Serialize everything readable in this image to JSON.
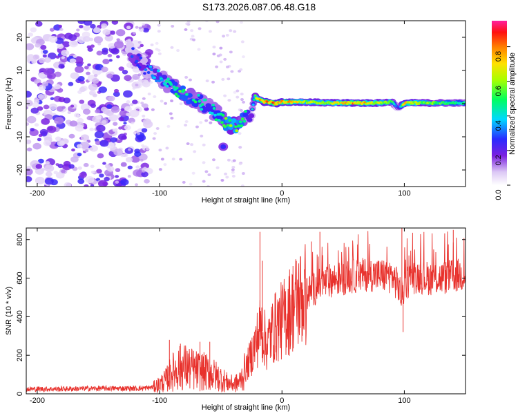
{
  "title": "S173.2026.087.06.48.G18",
  "chart_data": [
    {
      "type": "heatmap",
      "xlabel": "Height of straight line (km)",
      "ylabel": "Frequency (Hz)",
      "xlim": [
        -209,
        150
      ],
      "ylim": [
        -25,
        25
      ],
      "xticks": [
        -200,
        -100,
        0,
        100
      ],
      "yticks": [
        20,
        10,
        0,
        -10,
        -20
      ],
      "colorbar": {
        "label": "Normalized spectral amplitude",
        "range": [
          0,
          0.95
        ],
        "ticks": [
          "0.0",
          "0.2",
          "0.4",
          "0.6",
          "0.8"
        ],
        "tick_values": [
          0.0,
          0.2,
          0.4,
          0.6,
          0.8
        ],
        "colormap": "rainbow (white-violet-blue-cyan-green-yellow-red-magenta)"
      },
      "ridge": {
        "x": [
          -125,
          -110,
          -100,
          -90,
          -80,
          -70,
          -60,
          -50,
          -45,
          -40,
          -35,
          -30,
          -25,
          -22,
          -20,
          -15,
          -10,
          -5,
          0,
          10,
          20,
          40,
          60,
          80,
          90,
          95,
          100,
          120,
          150
        ],
        "freq": [
          16,
          10,
          8,
          5,
          3,
          1,
          -1,
          -4,
          -6,
          -7,
          -6,
          -4,
          -3,
          2.5,
          1.5,
          0.5,
          0.5,
          0,
          0.5,
          0.5,
          0.5,
          0.2,
          0.2,
          0.2,
          0.5,
          -1.5,
          0.2,
          0.2,
          0.2
        ],
        "amplitude": [
          0.25,
          0.3,
          0.35,
          0.45,
          0.5,
          0.45,
          0.4,
          0.45,
          0.55,
          0.6,
          0.55,
          0.45,
          0.3,
          0.55,
          0.65,
          0.75,
          0.8,
          0.75,
          0.75,
          0.7,
          0.6,
          0.6,
          0.75,
          0.6,
          0.55,
          0.2,
          0.7,
          0.55,
          0.45
        ]
      },
      "isolated_blob": {
        "x": -48,
        "freq": -13,
        "amplitude": 0.25
      }
    },
    {
      "type": "line",
      "xlabel": "Height of straight line (km)",
      "ylabel": "SNR (10 * v/v)",
      "xlim": [
        -209,
        150
      ],
      "ylim": [
        0,
        860
      ],
      "xticks": [
        -200,
        -100,
        0,
        100
      ],
      "yticks": [
        0,
        200,
        400,
        600,
        800
      ],
      "color": "#e8312c",
      "series": [
        {
          "x": [
            -209,
            -180,
            -150,
            -120,
            -110,
            -105,
            -100,
            -95,
            -90,
            -85,
            -80,
            -70,
            -60,
            -50,
            -45,
            -40,
            -35,
            -30,
            -25,
            -20,
            -17,
            -15,
            -12,
            -10,
            -5,
            0,
            5,
            10,
            20,
            30,
            40,
            50,
            60,
            70,
            80,
            90,
            95,
            98,
            100,
            105,
            110,
            120,
            130,
            140,
            150
          ],
          "y": [
            25,
            25,
            28,
            28,
            30,
            35,
            50,
            70,
            110,
            130,
            140,
            120,
            110,
            80,
            60,
            50,
            60,
            120,
            200,
            290,
            350,
            300,
            250,
            300,
            350,
            380,
            420,
            470,
            520,
            560,
            590,
            600,
            610,
            620,
            615,
            610,
            560,
            500,
            560,
            600,
            610,
            600,
            600,
            610,
            620
          ]
        }
      ],
      "spikes": [
        {
          "x": -92,
          "y": 280
        },
        {
          "x": -83,
          "y": 260
        },
        {
          "x": -67,
          "y": 270
        },
        {
          "x": -59,
          "y": 270
        },
        {
          "x": -18,
          "y": 840
        },
        {
          "x": -16,
          "y": 690
        },
        {
          "x": 24,
          "y": 790
        },
        {
          "x": 31,
          "y": 840
        },
        {
          "x": 98,
          "y": 860
        },
        {
          "x": 99,
          "y": 320
        },
        {
          "x": 140,
          "y": 850
        }
      ]
    }
  ]
}
